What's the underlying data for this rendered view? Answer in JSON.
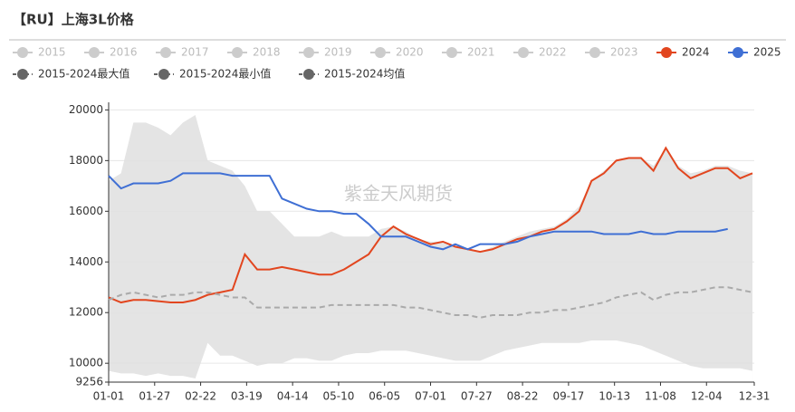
{
  "chart_data": {
    "type": "line",
    "title": "【RU】上海3L价格",
    "watermark": "紫金天风期货",
    "inactive_legend": {
      "names": [
        "2015",
        "2016",
        "2017",
        "2018",
        "2019",
        "2020",
        "2021",
        "2022",
        "2023"
      ],
      "color": "#cccccc"
    },
    "x": [
      0,
      7,
      14,
      21,
      28,
      35,
      42,
      49,
      56,
      63,
      70,
      77,
      84,
      91,
      98,
      105,
      112,
      119,
      126,
      133,
      140,
      147,
      154,
      161,
      168,
      175,
      182,
      189,
      196,
      203,
      210,
      217,
      224,
      231,
      238,
      245,
      252,
      259,
      266,
      273,
      280,
      287,
      294,
      301,
      308,
      315,
      322,
      329,
      336,
      343,
      350,
      357,
      364
    ],
    "xlim": [
      0,
      365
    ],
    "xticks": [
      {
        "value": 0,
        "label": "01-01"
      },
      {
        "value": 26,
        "label": "01-27"
      },
      {
        "value": 52,
        "label": "02-22"
      },
      {
        "value": 78,
        "label": "03-19"
      },
      {
        "value": 104,
        "label": "04-14"
      },
      {
        "value": 130,
        "label": "05-10"
      },
      {
        "value": 156,
        "label": "06-05"
      },
      {
        "value": 182,
        "label": "07-01"
      },
      {
        "value": 208,
        "label": "07-27"
      },
      {
        "value": 234,
        "label": "08-22"
      },
      {
        "value": 260,
        "label": "09-17"
      },
      {
        "value": 286,
        "label": "10-13"
      },
      {
        "value": 312,
        "label": "11-08"
      },
      {
        "value": 338,
        "label": "12-04"
      },
      {
        "value": 365,
        "label": "12-31"
      }
    ],
    "ylim": [
      9256,
      20300
    ],
    "yticks": [
      9256,
      10000,
      12000,
      14000,
      16000,
      18000,
      20000
    ],
    "grid": true,
    "series": [
      {
        "name": "2024",
        "color": "#e2461f",
        "style": "line",
        "values": [
          12600,
          12400,
          12500,
          12500,
          12450,
          12400,
          12400,
          12500,
          12700,
          12800,
          12900,
          14300,
          13700,
          13700,
          13800,
          13700,
          13600,
          13500,
          13500,
          13700,
          14000,
          14300,
          15000,
          15400,
          15100,
          14900,
          14700,
          14800,
          14600,
          14500,
          14400,
          14500,
          14700,
          14900,
          15000,
          15200,
          15300,
          15600,
          16000,
          17200,
          17500,
          18000,
          18100,
          18100,
          17600,
          18500,
          17700,
          17300,
          17500,
          17700,
          17700,
          17300,
          17500
        ]
      },
      {
        "name": "2025",
        "color": "#3f6fd4",
        "style": "line",
        "values": [
          17400,
          16900,
          17100,
          17100,
          17100,
          17200,
          17500,
          17500,
          17500,
          17500,
          17400,
          17400,
          17400,
          17400,
          16500,
          16300,
          16100,
          16000,
          16000,
          15900,
          15900,
          15500,
          15000,
          15000,
          15000,
          14800,
          14600,
          14500,
          14700,
          14500,
          14700,
          14700,
          14700,
          14800,
          15000,
          15100,
          15200,
          15200,
          15200,
          15200,
          15100,
          15100,
          15100,
          15200,
          15100,
          15100,
          15200,
          15200,
          15200,
          15200,
          15300,
          null,
          null
        ]
      },
      {
        "name": "2015-2024最大值",
        "color": "#666666",
        "style": "band-top",
        "draw_color": "#e4e4e4",
        "values": [
          17200,
          17500,
          19500,
          19500,
          19300,
          19000,
          19500,
          19800,
          18000,
          17800,
          17600,
          17000,
          16000,
          16000,
          15500,
          15000,
          15000,
          15000,
          15200,
          15000,
          15000,
          15000,
          15300,
          15400,
          15200,
          14900,
          14800,
          14800,
          14600,
          14500,
          14400,
          14600,
          14800,
          15000,
          15200,
          15300,
          15400,
          15700,
          16200,
          17200,
          17600,
          18000,
          18100,
          18100,
          17800,
          18500,
          17800,
          17500,
          17600,
          17800,
          17800,
          17600,
          17500
        ]
      },
      {
        "name": "2015-2024最小值",
        "color": "#666666",
        "style": "band-bottom",
        "draw_color": "#ffffff",
        "values": [
          9700,
          9600,
          9600,
          9500,
          9600,
          9500,
          9500,
          9400,
          10800,
          10300,
          10300,
          10100,
          9900,
          10000,
          10000,
          10200,
          10200,
          10100,
          10100,
          10300,
          10400,
          10400,
          10500,
          10500,
          10500,
          10400,
          10300,
          10200,
          10100,
          10100,
          10100,
          10300,
          10500,
          10600,
          10700,
          10800,
          10800,
          10800,
          10800,
          10900,
          10900,
          10900,
          10800,
          10700,
          10500,
          10300,
          10100,
          9900,
          9800,
          9800,
          9800,
          9800,
          9700
        ]
      },
      {
        "name": "2015-2024均值",
        "color": "#666666",
        "style": "dashed",
        "draw_color": "#aaaaaa",
        "values": [
          12500,
          12700,
          12800,
          12700,
          12600,
          12700,
          12700,
          12800,
          12800,
          12700,
          12600,
          12600,
          12200,
          12200,
          12200,
          12200,
          12200,
          12200,
          12300,
          12300,
          12300,
          12300,
          12300,
          12300,
          12200,
          12200,
          12100,
          12000,
          11900,
          11900,
          11800,
          11900,
          11900,
          11900,
          12000,
          12000,
          12100,
          12100,
          12200,
          12300,
          12400,
          12600,
          12700,
          12800,
          12500,
          12700,
          12800,
          12800,
          12900,
          13000,
          13000,
          12900,
          12800
        ]
      }
    ]
  }
}
